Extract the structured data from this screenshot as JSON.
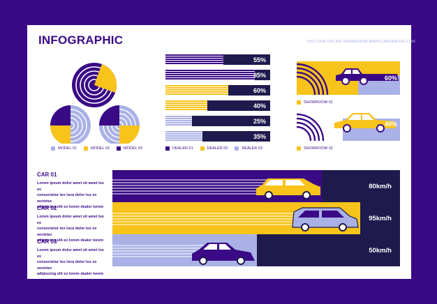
{
  "header": {
    "title": "INFOGRAPHIC",
    "url": "VISIT OUR ONLINE SHOWROOM WWW.CARDEALER.COM"
  },
  "models": {
    "legend": [
      {
        "label": "MODEL 01",
        "color": "#a9b1e6"
      },
      {
        "label": "MODEL 02",
        "color": "#f8c31a"
      },
      {
        "label": "MODEL 03",
        "color": "#3a0a86"
      }
    ],
    "pies": [
      {
        "name": "pie-top",
        "slice_fraction": 0.25,
        "slice_color": "#f8c31a"
      },
      {
        "name": "pie-left",
        "slice_fraction": 0.25,
        "slice_color": "#3a0a86"
      },
      {
        "name": "pie-right",
        "slice_fraction": 0.25,
        "slice_color": "#f8c31a"
      }
    ]
  },
  "dealers": {
    "legend": [
      {
        "label": "DEALER 01",
        "color": "#3a0a86"
      },
      {
        "label": "DEALER 02",
        "color": "#f8c31a"
      },
      {
        "label": "DEALER 03",
        "color": "#a9b1e6"
      }
    ],
    "bars": [
      {
        "percent": 55,
        "label": "55%",
        "color": "#3a0a86"
      },
      {
        "percent": 85,
        "label": "85%",
        "color": "#3a0a86"
      },
      {
        "percent": 60,
        "label": "60%",
        "color": "#f8c31a"
      },
      {
        "percent": 40,
        "label": "40%",
        "color": "#f8c31a"
      },
      {
        "percent": 25,
        "label": "25%",
        "color": "#a9b1e6"
      },
      {
        "percent": 35,
        "label": "35%",
        "color": "#a9b1e6"
      }
    ]
  },
  "showrooms": {
    "items": [
      {
        "label": "SHOWROOM 01",
        "value": "60%"
      },
      {
        "label": "SHOWROOM 02",
        "value": "40%"
      }
    ]
  },
  "cars": [
    {
      "title": "CAR 01",
      "desc": [
        "Lorem ipsum dolor amet sit amet lux ex",
        "consectetur tex loca dolor lux ex sectetur",
        "adipiscing elit ex lorem dealer lorem"
      ],
      "speed": "80km/h"
    },
    {
      "title": "CAR 02",
      "desc": [
        "Lorem ipsum dolor amet sit amet lux ex",
        "consectetur tex loca dolor lux ex sectetur",
        "adipiscing elit ex lorem dealer lorem"
      ],
      "speed": "95km/h"
    },
    {
      "title": "CAR 03",
      "desc": [
        "Lorem ipsum dolor amet sit amet lux ex",
        "consectetur tex loca dolor lux ex sectetur",
        "adipiscing elit ex lorem dealer lorem"
      ],
      "speed": "50km/h"
    }
  ]
}
